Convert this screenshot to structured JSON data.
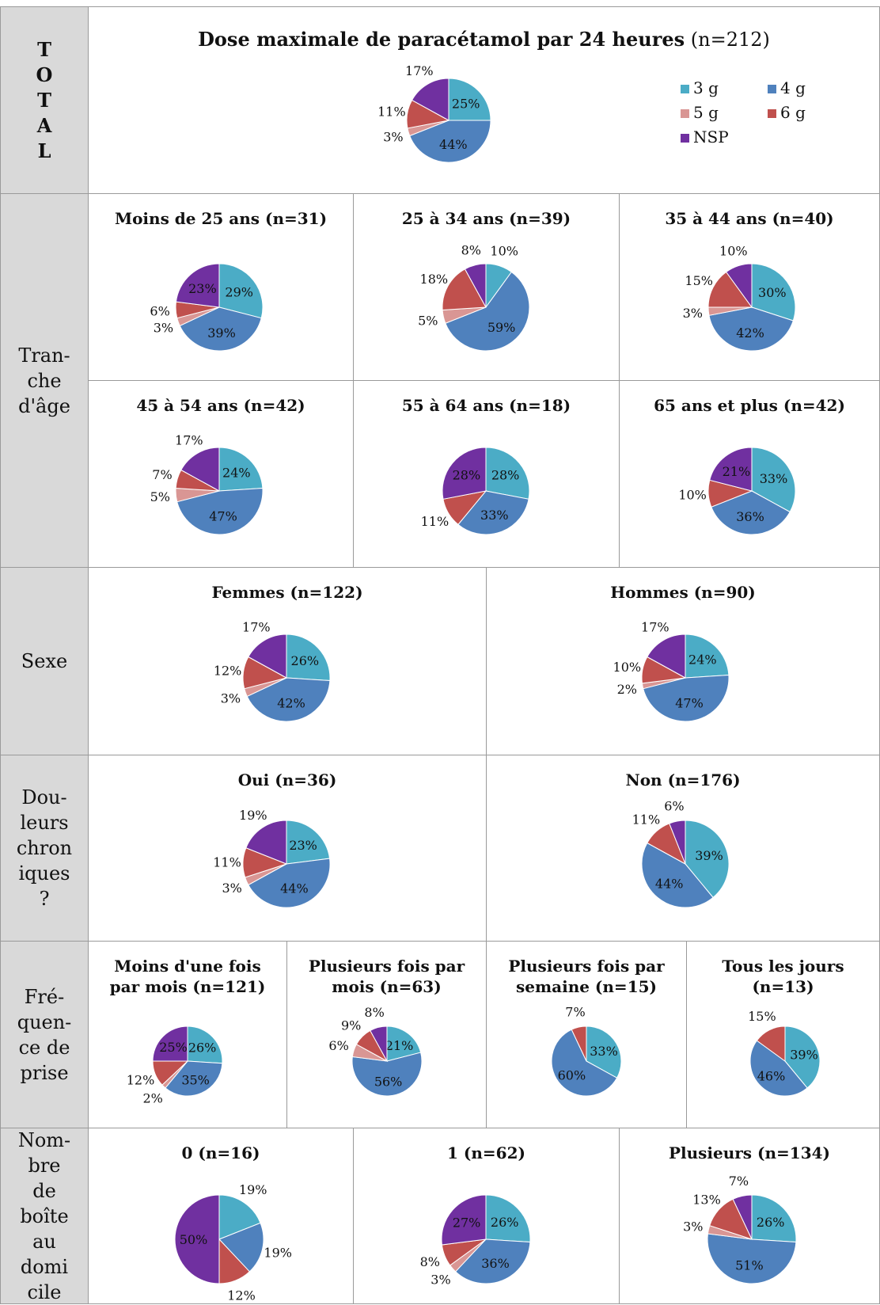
{
  "colors": {
    "3 g": "#4bacc6",
    "4 g": "#4f81bd",
    "5 g": "#d99694",
    "6 g": "#c0504d",
    "NSP": "#7030a0"
  },
  "total": {
    "side_label": "T\nO\nT\nA\nL",
    "title_bold": "Dose maximale  de paracétamol par 24 heures",
    "title_n": " (n=212)"
  },
  "legend": [
    {
      "label": "3 g",
      "color": "#4bacc6"
    },
    {
      "label": "4 g",
      "color": "#4f81bd"
    },
    {
      "label": "5 g",
      "color": "#d99694"
    },
    {
      "label": "6 g",
      "color": "#c0504d"
    },
    {
      "label": "NSP",
      "color": "#7030a0"
    }
  ],
  "sections": [
    {
      "id": "age",
      "label": "Tran-\nche\nd'âge"
    },
    {
      "id": "sexe",
      "label": "Sexe"
    },
    {
      "id": "douleurs",
      "label": "Dou-\nleurs\nchron\niques\n?"
    },
    {
      "id": "frequence",
      "label": "Fré-\nquen-\nce de\nprise"
    },
    {
      "id": "boites",
      "label": "Nom-\nbre\nde\nboîte\nau\ndomi\ncile"
    }
  ],
  "chart_data": [
    {
      "type": "pie",
      "title": "Dose maximale  de paracétamol par 24 heures (n=212)",
      "categories": [
        "3 g",
        "4 g",
        "5 g",
        "6 g",
        "NSP"
      ],
      "values": [
        25,
        44,
        3,
        11,
        17
      ],
      "labels": [
        "25%",
        "44%",
        "3%",
        "11%",
        "17%"
      ]
    },
    {
      "type": "pie",
      "title": "Moins de 25 ans (n=31)",
      "categories": [
        "3 g",
        "4 g",
        "5 g",
        "6 g",
        "NSP"
      ],
      "values": [
        29,
        39,
        3,
        6,
        23
      ],
      "labels": [
        "29%",
        "39%",
        "3%",
        "6%",
        "23%"
      ]
    },
    {
      "type": "pie",
      "title": "25 à 34 ans (n=39)",
      "categories": [
        "3 g",
        "4 g",
        "5 g",
        "6 g",
        "NSP"
      ],
      "values": [
        10,
        59,
        5,
        18,
        8
      ],
      "labels": [
        "10%",
        "59%",
        "5%",
        "18%",
        "8%"
      ]
    },
    {
      "type": "pie",
      "title": "35 à 44 ans (n=40)",
      "categories": [
        "3 g",
        "4 g",
        "5 g",
        "6 g",
        "NSP"
      ],
      "values": [
        30,
        42,
        3,
        15,
        10
      ],
      "labels": [
        "30%",
        "42%",
        "3%",
        "15%",
        "10%"
      ]
    },
    {
      "type": "pie",
      "title": "45 à 54 ans (n=42)",
      "categories": [
        "3 g",
        "4 g",
        "5 g",
        "6 g",
        "NSP"
      ],
      "values": [
        24,
        47,
        5,
        7,
        17
      ],
      "labels": [
        "24%",
        "47%",
        "5%",
        "7%",
        "17%"
      ]
    },
    {
      "type": "pie",
      "title": "55 à 64 ans (n=18)",
      "categories": [
        "3 g",
        "4 g",
        "6 g",
        "NSP"
      ],
      "values": [
        28,
        33,
        11,
        28
      ],
      "labels": [
        "28%",
        "33%",
        "11%",
        "28%"
      ]
    },
    {
      "type": "pie",
      "title": "65 ans et plus (n=42)",
      "categories": [
        "3 g",
        "4 g",
        "6 g",
        "NSP"
      ],
      "values": [
        33,
        36,
        10,
        21
      ],
      "labels": [
        "33%",
        "36%",
        "10%",
        "21%"
      ]
    },
    {
      "type": "pie",
      "title": "Femmes (n=122)",
      "categories": [
        "3 g",
        "4 g",
        "5 g",
        "6 g",
        "NSP"
      ],
      "values": [
        26,
        42,
        3,
        12,
        17
      ],
      "labels": [
        "26%",
        "42%",
        "3%",
        "12%",
        "17%"
      ]
    },
    {
      "type": "pie",
      "title": "Hommes (n=90)",
      "categories": [
        "3 g",
        "4 g",
        "5 g",
        "6 g",
        "NSP"
      ],
      "values": [
        24,
        47,
        2,
        10,
        17
      ],
      "labels": [
        "24%",
        "47%",
        "2%",
        "10%",
        "17%"
      ]
    },
    {
      "type": "pie",
      "title": "Oui (n=36)",
      "categories": [
        "3 g",
        "4 g",
        "5 g",
        "6 g",
        "NSP"
      ],
      "values": [
        23,
        44,
        3,
        11,
        19
      ],
      "labels": [
        "23%",
        "44%",
        "3%",
        "11%",
        "19%"
      ]
    },
    {
      "type": "pie",
      "title": "Non (n=176)",
      "categories": [
        "3 g",
        "4 g",
        "6 g",
        "NSP"
      ],
      "values": [
        39,
        44,
        11,
        6
      ],
      "labels": [
        "39%",
        "44%",
        "11%",
        "6%"
      ]
    },
    {
      "type": "pie",
      "title": "Moins d'une fois\npar mois (n=121)",
      "categories": [
        "3 g",
        "4 g",
        "5 g",
        "6 g",
        "NSP"
      ],
      "values": [
        26,
        35,
        2,
        12,
        25
      ],
      "labels": [
        "26%",
        "35%",
        "2%",
        "12%",
        "25%"
      ]
    },
    {
      "type": "pie",
      "title": "Plusieurs fois par\nmois (n=63)",
      "categories": [
        "3 g",
        "4 g",
        "5 g",
        "6 g",
        "NSP"
      ],
      "values": [
        21,
        56,
        6,
        9,
        8
      ],
      "labels": [
        "21%",
        "56%",
        "6%",
        "9%",
        "8%"
      ]
    },
    {
      "type": "pie",
      "title": "Plusieurs fois par\nsemaine (n=15)",
      "categories": [
        "3 g",
        "4 g",
        "6 g"
      ],
      "values": [
        33,
        60,
        7
      ],
      "labels": [
        "33%",
        "60%",
        "7%"
      ]
    },
    {
      "type": "pie",
      "title": "Tous les jours\n(n=13)",
      "categories": [
        "3 g",
        "4 g",
        "6 g"
      ],
      "values": [
        39,
        46,
        15
      ],
      "labels": [
        "39%",
        "46%",
        "15%"
      ]
    },
    {
      "type": "pie",
      "title": "0 (n=16)",
      "categories": [
        "3 g",
        "4 g",
        "6 g",
        "NSP"
      ],
      "values": [
        19,
        19,
        12,
        50
      ],
      "labels": [
        "19%",
        "19%",
        "12%",
        "50%"
      ]
    },
    {
      "type": "pie",
      "title": "1 (n=62)",
      "categories": [
        "3 g",
        "4 g",
        "5 g",
        "6 g",
        "NSP"
      ],
      "values": [
        26,
        36,
        3,
        8,
        27
      ],
      "labels": [
        "26%",
        "36%",
        "3%",
        "8%",
        "27%"
      ]
    },
    {
      "type": "pie",
      "title": "Plusieurs (n=134)",
      "categories": [
        "3 g",
        "4 g",
        "5 g",
        "6 g",
        "NSP"
      ],
      "values": [
        26,
        51,
        3,
        13,
        7
      ],
      "labels": [
        "26%",
        "51%",
        "3%",
        "13%",
        "7%"
      ]
    }
  ]
}
